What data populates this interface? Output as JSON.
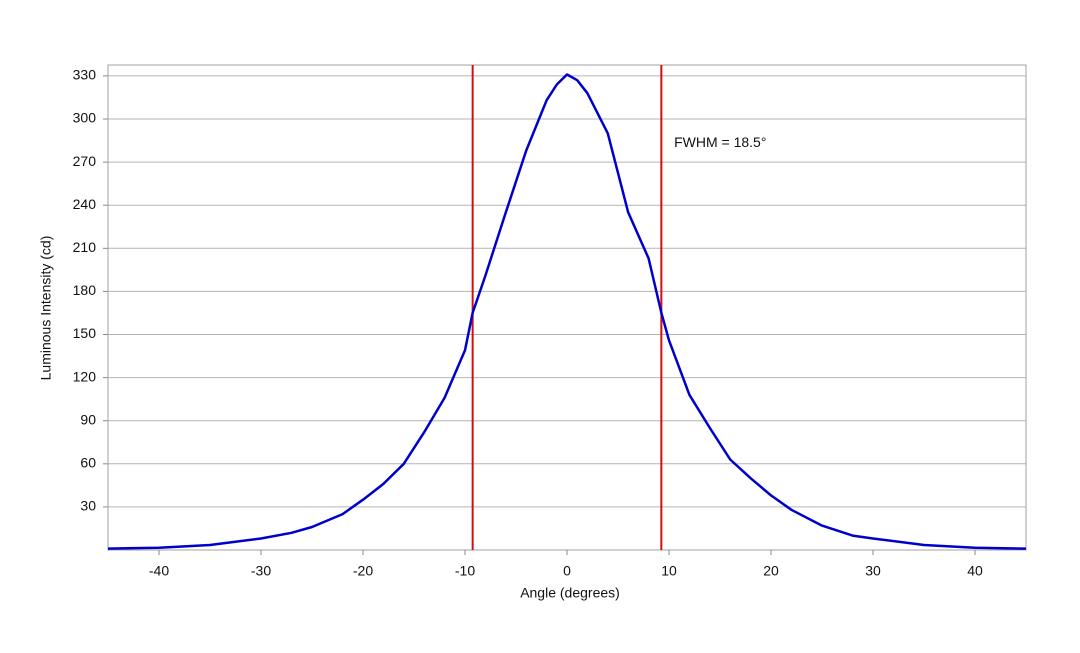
{
  "chart_data": {
    "type": "line",
    "x_label": "Angle (degrees)",
    "y_label": "Luminous Intensity (cd)",
    "x": [
      -45,
      -40,
      -35,
      -30,
      -27,
      -25,
      -22,
      -20,
      -18,
      -16,
      -14,
      -12,
      -10,
      -9.25,
      -8,
      -6,
      -4,
      -2,
      -1,
      0,
      1,
      2,
      4,
      6,
      8,
      9.25,
      10,
      12,
      14,
      16,
      18,
      20,
      22,
      25,
      28,
      30,
      35,
      40,
      45
    ],
    "values": [
      1,
      1.5,
      3.5,
      8,
      12,
      16,
      25,
      35,
      46,
      60,
      82,
      106,
      139,
      165,
      191,
      235,
      278,
      313,
      324,
      331,
      327,
      318,
      290,
      235,
      203,
      165,
      146,
      108,
      85,
      63,
      50,
      38,
      28,
      17,
      10,
      8,
      3.5,
      1.5,
      1
    ],
    "color": "#0000cc",
    "vlines": [
      -9.25,
      9.25
    ],
    "vline_color": "#d01010",
    "annotation": {
      "text": "FWHM = 18.5°",
      "x": 10.5,
      "y": 283
    },
    "xlim": [
      -45,
      45
    ],
    "xticks": [
      -40,
      -30,
      -20,
      -10,
      0,
      10,
      20,
      30,
      40
    ],
    "ylim": [
      0,
      337.6
    ],
    "yticks": [
      30,
      60,
      90,
      120,
      150,
      180,
      210,
      240,
      270,
      300,
      330
    ],
    "grid": true
  }
}
